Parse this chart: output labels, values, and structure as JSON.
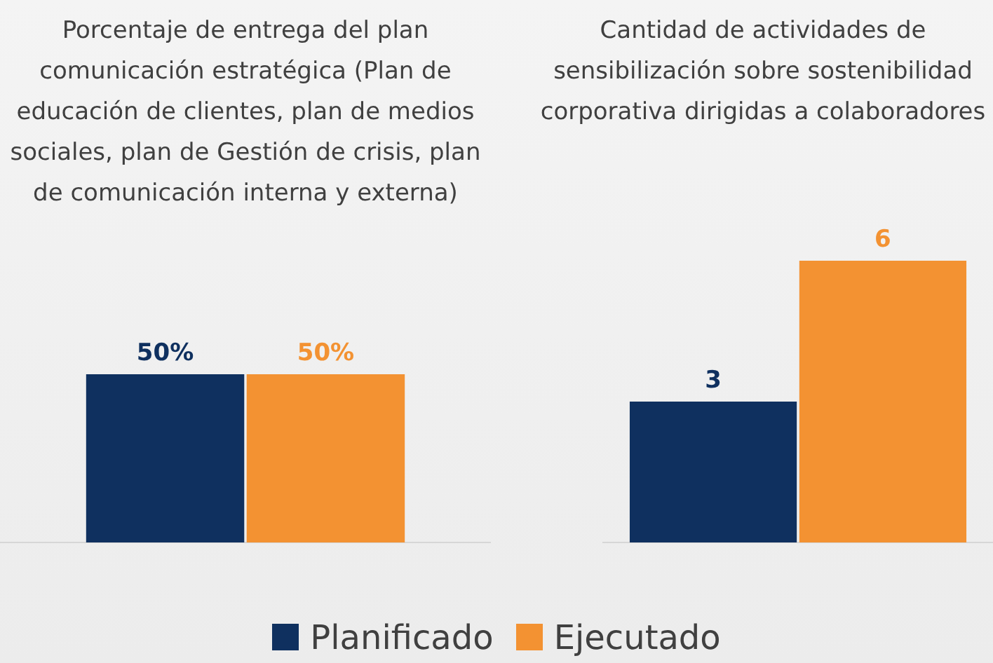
{
  "chart_data": [
    {
      "type": "bar",
      "title": "Porcentaje de entrega del plan comunicación estratégica (Plan de educación de clientes, plan de medios sociales, plan de Gestión de crisis, plan de comunicación interna y externa)",
      "categories": [
        null
      ],
      "series": [
        {
          "color": "#0f305f",
          "values": [
            50
          ],
          "value_labels": [
            "50%"
          ]
        },
        {
          "color": "#f39232",
          "values": [
            50
          ],
          "value_labels": [
            "50%"
          ]
        }
      ]
    },
    {
      "type": "bar",
      "title": "Cantidad de actividades de sensibilización sobre sostenibilidad corporativa dirigidas a colaboradores",
      "categories": [
        null
      ],
      "series": [
        {
          "name": "Planificado",
          "color": "#0f305f",
          "values": [
            3
          ]
        },
        {
          "name": "Ejecutado",
          "color": "#f39232",
          "values": [
            6
          ]
        }
      ],
      "data_labels": true,
      "legend": "bottom"
    }
  ]
}
